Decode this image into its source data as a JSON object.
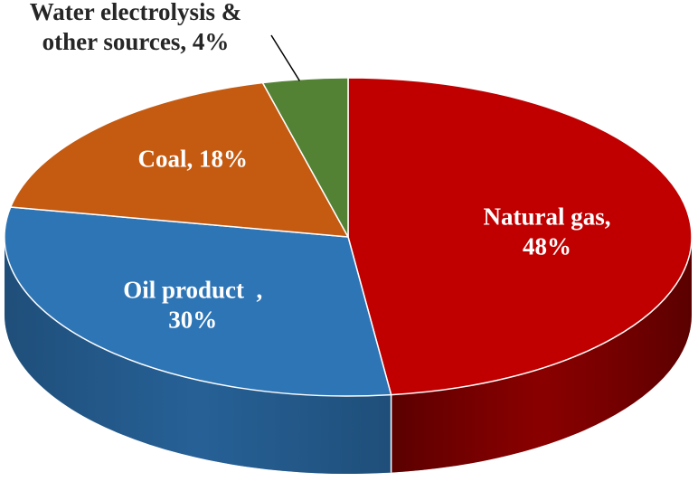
{
  "chart_data": {
    "type": "pie",
    "style": "3d-pie",
    "title": "",
    "slices": [
      {
        "name": "Natural gas",
        "value": 48,
        "color": "#c00000",
        "side_color": "#5a0000",
        "label_lines": [
          "Natural gas,",
          "48%"
        ],
        "label_color": "#ffffff"
      },
      {
        "name": "Oil product",
        "value": 30,
        "color": "#2e75b6",
        "side_color": "#1f4e79",
        "label_lines": [
          "Oil product  ,",
          "30%"
        ],
        "label_color": "#ffffff"
      },
      {
        "name": "Coal",
        "value": 18,
        "color": "#c55a11",
        "side_color": "#843c0c",
        "label_lines": [
          "Coal, 18%"
        ],
        "label_color": "#ffffff"
      },
      {
        "name": "Water electrolysis & other sources",
        "value": 4,
        "color": "#548235",
        "side_color": "#375623",
        "label_lines": [
          "Water electrolysis &",
          "other sources, 4%"
        ],
        "label_color": "#262626"
      }
    ],
    "legend": "none",
    "start_angle": "12 o'clock, clockwise"
  }
}
